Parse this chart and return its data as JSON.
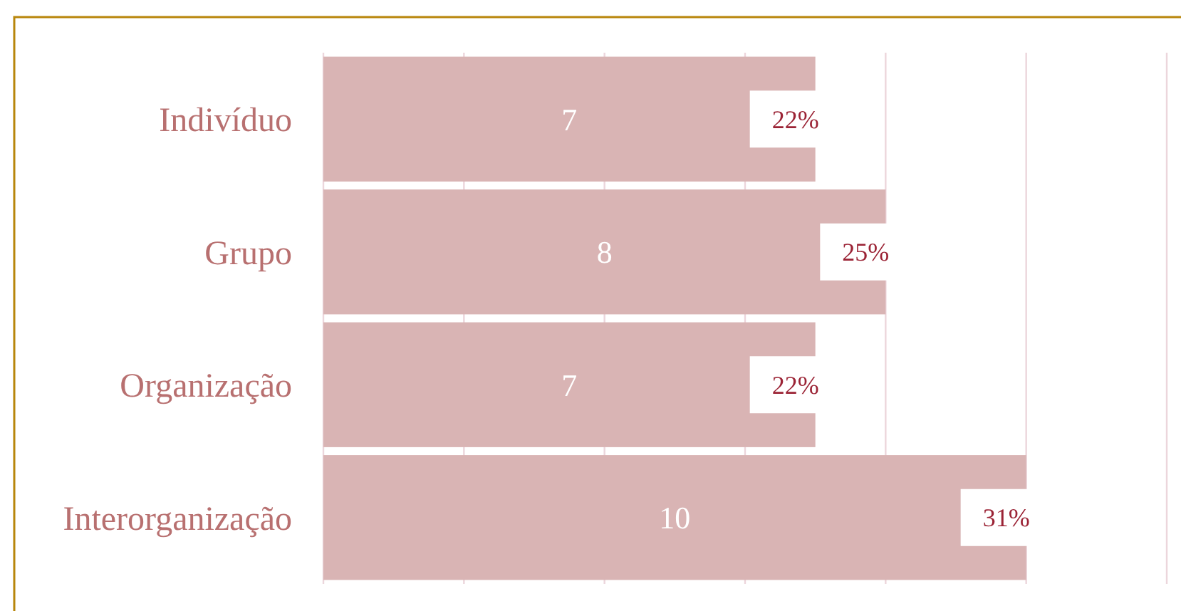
{
  "chart_data": {
    "type": "bar",
    "orientation": "horizontal",
    "categories": [
      "Indivíduo",
      "Grupo",
      "Organização",
      "Interorganização"
    ],
    "values": [
      7,
      8,
      7,
      10
    ],
    "color": "#d9b4b4",
    "data_labels": true,
    "xlim": [
      0,
      12
    ],
    "xticks": [
      {
        "value": 0,
        "label": null
      },
      {
        "value": 2,
        "label": null
      },
      {
        "value": 4,
        "label": null
      },
      {
        "value": 6,
        "label": null
      },
      {
        "value": 8,
        "label": null
      },
      {
        "value": 10,
        "label": null
      },
      {
        "value": 12,
        "label": null
      }
    ],
    "grid": "x",
    "tick_labels": "y",
    "annotations": [
      {
        "text": "22%",
        "x": 7,
        "y": "Indivíduo"
      },
      {
        "text": "25%",
        "x": 8,
        "y": "Grupo"
      },
      {
        "text": "22%",
        "x": 7,
        "y": "Organização"
      },
      {
        "text": "31%",
        "x": 10,
        "y": "Interorganização"
      }
    ]
  }
}
